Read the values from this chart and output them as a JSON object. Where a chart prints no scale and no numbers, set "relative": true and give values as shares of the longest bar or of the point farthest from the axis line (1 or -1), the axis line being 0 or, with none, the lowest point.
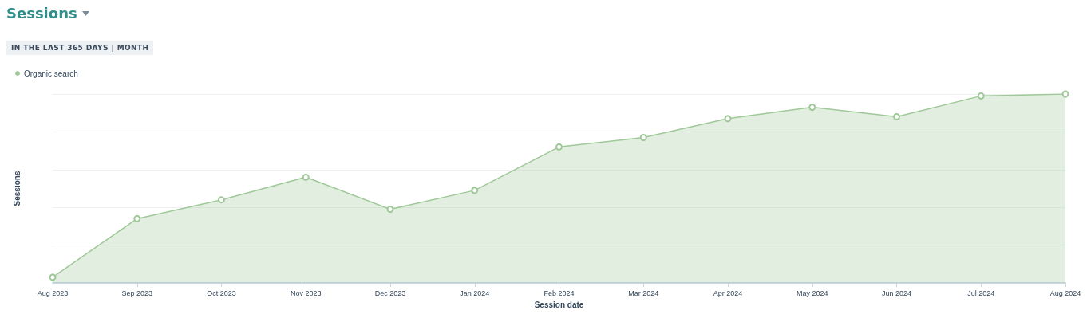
{
  "chart_data": {
    "type": "area",
    "title": "Sessions",
    "subtitle": "IN THE LAST 365 DAYS | MONTH",
    "xlabel": "Session date",
    "ylabel": "Sessions",
    "categories": [
      "Aug 2023",
      "Sep 2023",
      "Oct 2023",
      "Nov 2023",
      "Dec 2023",
      "Jan 2024",
      "Feb 2024",
      "Mar 2024",
      "Apr 2024",
      "May 2024",
      "Jun 2024",
      "Jul 2024",
      "Aug 2024"
    ],
    "series": [
      {
        "name": "Organic search",
        "color": "#9fc898",
        "values": [
          0.03,
          0.34,
          0.44,
          0.56,
          0.39,
          0.49,
          0.72,
          0.77,
          0.87,
          0.93,
          0.88,
          0.99,
          1
        ]
      }
    ],
    "relative": true,
    "grid": "y",
    "legend": "top left",
    "marker": "circle"
  }
}
